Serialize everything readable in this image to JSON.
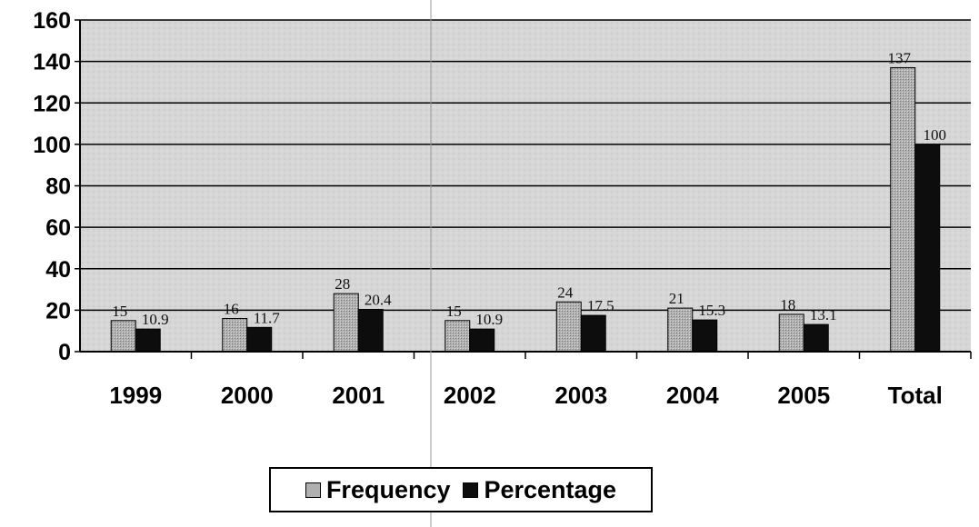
{
  "chart_data": {
    "type": "bar",
    "categories": [
      "1999",
      "2000",
      "2001",
      "2002",
      "2003",
      "2004",
      "2005",
      "Total"
    ],
    "series": [
      {
        "name": "Frequency",
        "values": [
          15,
          16,
          28,
          15,
          24,
          21,
          18,
          137
        ],
        "labels": [
          "15",
          "16",
          "28",
          "15",
          "24",
          "21",
          "18",
          "137"
        ]
      },
      {
        "name": "Percentage",
        "values": [
          10.9,
          11.7,
          20.4,
          10.9,
          17.5,
          15.3,
          13.1,
          100
        ],
        "labels": [
          "10.9",
          "11.7",
          "20.4",
          "10.9",
          "17.5",
          "15.3",
          "13.1",
          "100"
        ]
      }
    ],
    "ylim": [
      0,
      160
    ],
    "yticks": [
      "0",
      "20",
      "40",
      "60",
      "80",
      "100",
      "120",
      "140",
      "160"
    ],
    "grid": true,
    "legend_position": "bottom",
    "colors": {
      "Frequency": "#a8a8a8",
      "Percentage": "#0d0d0d",
      "plot_background": "#d9d9d9"
    }
  }
}
